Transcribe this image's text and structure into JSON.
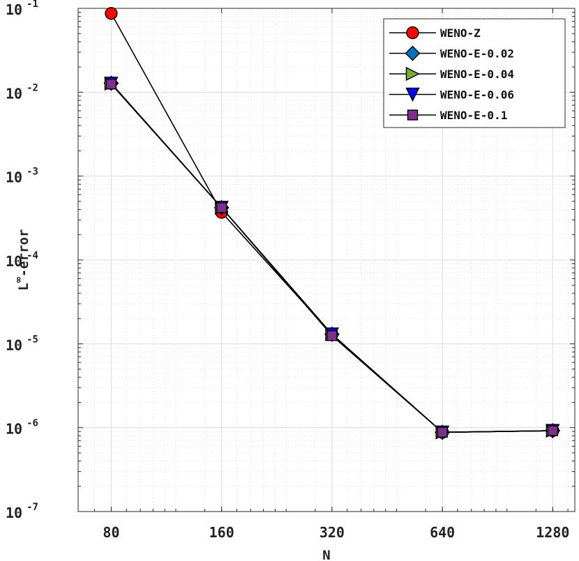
{
  "chart_data": {
    "type": "line",
    "title": "",
    "xlabel": "N",
    "ylabel_base": "L",
    "ylabel_sup": "∞",
    "ylabel_rest": "-error",
    "xscale": "log2",
    "yscale": "log10",
    "xlim": [
      80,
      1280
    ],
    "ylim": [
      1e-07,
      0.1
    ],
    "x": [
      80,
      160,
      320,
      640,
      1280
    ],
    "x_tick_labels": [
      "80",
      "160",
      "320",
      "640",
      "1280"
    ],
    "y_ticks": [
      {
        "base": "10",
        "exp": "-7"
      },
      {
        "base": "10",
        "exp": "-6"
      },
      {
        "base": "10",
        "exp": "-5"
      },
      {
        "base": "10",
        "exp": "-4"
      },
      {
        "base": "10",
        "exp": "-3"
      },
      {
        "base": "10",
        "exp": "-2"
      },
      {
        "base": "10",
        "exp": "-1"
      }
    ],
    "grid": true,
    "legend_position": "top-right",
    "series": [
      {
        "name": "WENO-Z",
        "marker": "circle",
        "color": "#ff0000",
        "values": [
          0.087,
          0.00037,
          1.3e-05,
          8.8e-07,
          9.2e-07
        ]
      },
      {
        "name": "WENO-E-0.02",
        "marker": "diamond",
        "color": "#0072bd",
        "values": [
          0.0128,
          0.00042,
          1.3e-05,
          8.8e-07,
          9.2e-07
        ]
      },
      {
        "name": "WENO-E-0.04",
        "marker": "triangle-right",
        "color": "#77ac30",
        "values": [
          0.0127,
          0.00042,
          1.3e-05,
          8.8e-07,
          9.2e-07
        ]
      },
      {
        "name": "WENO-E-0.06",
        "marker": "triangle-down",
        "color": "#0000ff",
        "values": [
          0.0127,
          0.00042,
          1.3e-05,
          8.8e-07,
          9.2e-07
        ]
      },
      {
        "name": "WENO-E-0.1",
        "marker": "square",
        "color": "#7e2f8e",
        "values": [
          0.0125,
          0.00042,
          1.25e-05,
          8.8e-07,
          9.2e-07
        ]
      }
    ]
  }
}
